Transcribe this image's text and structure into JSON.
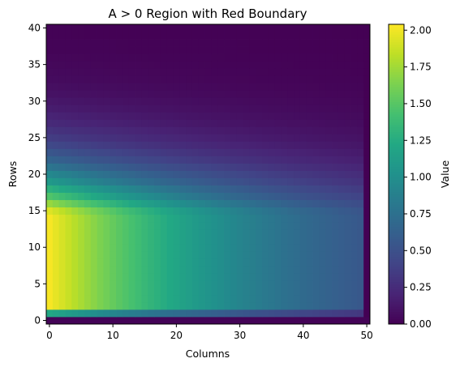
{
  "chart_data": {
    "type": "heatmap",
    "title": "A > 0 Region with Red Boundary",
    "xlabel": "Columns",
    "ylabel": "Rows",
    "xlim": [
      -0.5,
      50.5
    ],
    "ylim": [
      -0.5,
      40.5
    ],
    "xticks": [
      0,
      10,
      20,
      30,
      40,
      50
    ],
    "yticks": [
      0,
      5,
      10,
      15,
      20,
      25,
      30,
      35,
      40
    ],
    "colormap": "viridis",
    "colorbar": {
      "label": "Value",
      "min": 0.0,
      "max": 2.04,
      "ticks": [
        "0.00",
        "0.25",
        "0.50",
        "0.75",
        "1.00",
        "1.25",
        "1.50",
        "1.75",
        "2.00"
      ]
    },
    "grid_size": {
      "rows": 41,
      "cols": 51
    },
    "row_profile": [
      0.05,
      0.6,
      1.0,
      1.0,
      1.0,
      1.0,
      1.0,
      1.0,
      1.0,
      1.0,
      1.0,
      1.0,
      1.0,
      1.0,
      1.0,
      0.96,
      0.85,
      0.73,
      0.64,
      0.54,
      0.47,
      0.39,
      0.32,
      0.27,
      0.22,
      0.18,
      0.15,
      0.12,
      0.1,
      0.08,
      0.065,
      0.05,
      0.04,
      0.03,
      0.025,
      0.02,
      0.015,
      0.01,
      0.01,
      0.005,
      0.005
    ],
    "column_profile_note": "values decay from left (max ~2.0) toward 0 at column 50; ~0.6 at column 38",
    "max_value": 2.02,
    "grid": false
  }
}
